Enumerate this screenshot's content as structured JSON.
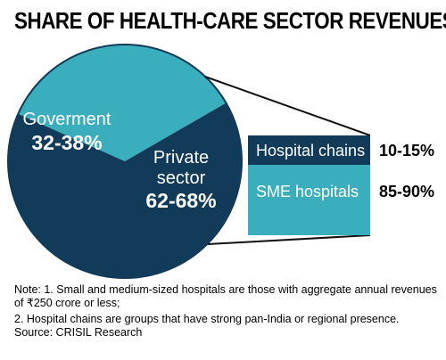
{
  "title": "SHARE OF HEALTH-CARE SECTOR REVENUES",
  "chart_data": [
    {
      "type": "pie",
      "slices": [
        {
          "label_line1": "Goverment",
          "label_line2": "",
          "value_label": "32-38%",
          "value": 35,
          "color": "#3aaebd"
        },
        {
          "label_line1": "Private",
          "label_line2": "sector",
          "value_label": "62-68%",
          "value": 65,
          "color": "#123b5a"
        }
      ]
    },
    {
      "type": "table",
      "rows": [
        {
          "label": "Hospital chains",
          "value_label": "10-15%",
          "color": "#123b5a",
          "text_color": "#ffffff"
        },
        {
          "label": "SME hospitals",
          "value_label": "85-90%",
          "color": "#3aaebd",
          "text_color": "#ffffff"
        }
      ]
    }
  ],
  "notes": {
    "note1": "Note: 1. Small and medium-sized hospitals are those with aggregate annual revenues of ₹250 crore or less;",
    "note2": "2. Hospital chains are groups that have strong pan-India or regional presence.",
    "source": "Source: CRISIL Research"
  }
}
